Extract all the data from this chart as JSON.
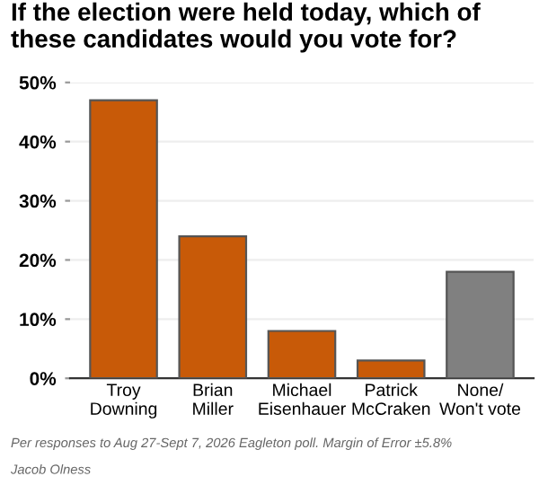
{
  "chart_data": {
    "type": "bar",
    "title": "If the election were held today, which of these candidates would you vote for?",
    "categories": [
      "Troy\nDowning",
      "Brian\nMiller",
      "Michael\nEisenhauer",
      "Patrick\nMcCraken",
      "None/\nWon't vote"
    ],
    "values": [
      47,
      24,
      8,
      3,
      18
    ],
    "colors": [
      "#c85a08",
      "#c85a08",
      "#c85a08",
      "#c85a08",
      "#808080"
    ],
    "ylim": [
      0,
      50
    ],
    "yticks": [
      {
        "value": 0,
        "label": "0%"
      },
      {
        "value": 10,
        "label": "10%"
      },
      {
        "value": 20,
        "label": "20%"
      },
      {
        "value": 30,
        "label": "30%"
      },
      {
        "value": 40,
        "label": "40%"
      },
      {
        "value": 50,
        "label": "50%"
      }
    ],
    "grid": "y",
    "annotations": [
      "Per responses to Aug 27-Sept 7, 2026 Eagleton poll. Margin of Error ±5.8%",
      "Jacob Olness"
    ]
  }
}
